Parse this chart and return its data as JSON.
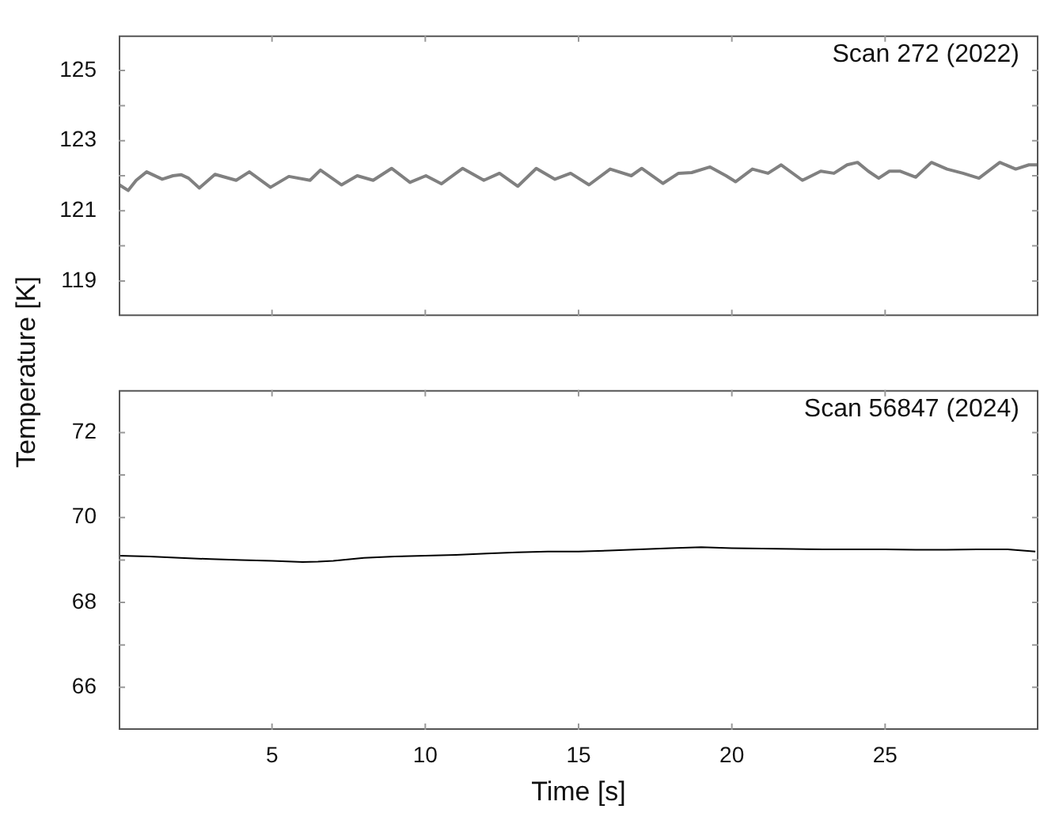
{
  "chart_data": [
    {
      "type": "line",
      "annotations": [
        "Scan 272 (2022)"
      ],
      "xlim": [
        0,
        30
      ],
      "xticks": [
        {
          "value": 5,
          "label": null
        },
        {
          "value": 10,
          "label": null
        },
        {
          "value": 15,
          "label": null
        },
        {
          "value": 20,
          "label": null
        },
        {
          "value": 25,
          "label": null
        }
      ],
      "ylim": [
        118,
        126
      ],
      "yticks": [
        119,
        {
          "value": 120,
          "label": null
        },
        121,
        {
          "value": 122,
          "label": null
        },
        123,
        {
          "value": 124,
          "label": null
        },
        125
      ],
      "tick_labels": "y",
      "marker": "none",
      "legend": false,
      "grid": false,
      "series": [
        {
          "color": "#808080",
          "x": [
            0.02,
            0.31,
            0.57,
            0.91,
            1.42,
            1.77,
            2.03,
            2.28,
            2.63,
            3.14,
            3.83,
            4.26,
            4.95,
            5.55,
            6.24,
            6.58,
            7.27,
            7.78,
            8.3,
            8.9,
            9.5,
            10.02,
            10.53,
            11.22,
            11.91,
            12.42,
            13.02,
            13.62,
            14.23,
            14.74,
            15.34,
            16.03,
            16.72,
            17.06,
            17.75,
            18.26,
            18.69,
            19.29,
            19.81,
            20.12,
            20.67,
            21.18,
            21.61,
            22.3,
            22.9,
            23.33,
            23.76,
            24.1,
            24.45,
            24.79,
            25.14,
            25.48,
            26.0,
            26.51,
            27.02,
            27.54,
            28.06,
            28.74,
            29.26,
            29.69,
            29.95
          ],
          "values": [
            121.74,
            121.58,
            121.87,
            122.11,
            121.9,
            122.0,
            122.03,
            121.93,
            121.65,
            122.04,
            121.87,
            122.11,
            121.67,
            121.98,
            121.87,
            122.16,
            121.74,
            122.0,
            121.87,
            122.21,
            121.81,
            122.0,
            121.77,
            122.21,
            121.87,
            122.07,
            121.7,
            122.21,
            121.9,
            122.07,
            121.74,
            122.19,
            122.0,
            122.21,
            121.78,
            122.07,
            122.09,
            122.25,
            122.0,
            121.83,
            122.19,
            122.07,
            122.31,
            121.87,
            122.13,
            122.07,
            122.31,
            122.38,
            122.13,
            121.93,
            122.13,
            122.13,
            121.96,
            122.38,
            122.19,
            122.07,
            121.93,
            122.38,
            122.19,
            122.31,
            122.31
          ]
        }
      ]
    },
    {
      "type": "line",
      "annotations": [
        "Scan 56847 (2024)"
      ],
      "xlabel": "Time [s]",
      "ylabel": "Temperature [K]",
      "xlim": [
        0,
        30
      ],
      "xticks": [
        5,
        10,
        15,
        20,
        25
      ],
      "ylim": [
        65,
        73
      ],
      "yticks": [
        {
          "value": 66,
          "label": "66"
        },
        {
          "value": 67,
          "label": null
        },
        {
          "value": 68,
          "label": "68"
        },
        {
          "value": 69,
          "label": null
        },
        {
          "value": 70,
          "label": "70"
        },
        {
          "value": 71,
          "label": null
        },
        {
          "value": 72,
          "label": "72"
        }
      ],
      "marker": "none",
      "legend": false,
      "grid": false,
      "series": [
        {
          "color": "#000000",
          "x": [
            0,
            1,
            2,
            3,
            4,
            5,
            6,
            6.5,
            7,
            8,
            9,
            10,
            11,
            12,
            13,
            14,
            15,
            16,
            17,
            18,
            19,
            20,
            21,
            22,
            23,
            24,
            25,
            26,
            27,
            28,
            29,
            29.9
          ],
          "values": [
            69.1,
            69.08,
            69.05,
            69.02,
            69.0,
            68.98,
            68.95,
            68.96,
            68.98,
            69.05,
            69.08,
            69.1,
            69.12,
            69.15,
            69.18,
            69.2,
            69.2,
            69.22,
            69.25,
            69.28,
            69.3,
            69.28,
            69.27,
            69.26,
            69.25,
            69.25,
            69.25,
            69.24,
            69.24,
            69.25,
            69.25,
            69.2
          ]
        }
      ]
    }
  ]
}
